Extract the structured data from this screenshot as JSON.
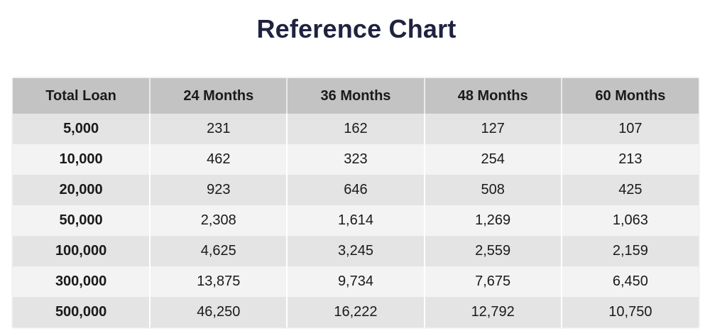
{
  "title": "Reference Chart",
  "table": {
    "headers": [
      "Total Loan",
      "24 Months",
      "36 Months",
      "48 Months",
      "60 Months"
    ],
    "rows": [
      [
        "5,000",
        "231",
        "162",
        "127",
        "107"
      ],
      [
        "10,000",
        "462",
        "323",
        "254",
        "213"
      ],
      [
        "20,000",
        "923",
        "646",
        "508",
        "425"
      ],
      [
        "50,000",
        "2,308",
        "1,614",
        "1,269",
        "1,063"
      ],
      [
        "100,000",
        "4,625",
        "3,245",
        "2,559",
        "2,159"
      ],
      [
        "300,000",
        "13,875",
        "9,734",
        "7,675",
        "6,450"
      ],
      [
        "500,000",
        "46,250",
        "16,222",
        "12,792",
        "10,750"
      ]
    ]
  },
  "colors": {
    "title": "#1f2240",
    "header_bg": "#c3c3c3",
    "row_odd_bg": "#e4e4e4",
    "row_even_bg": "#f3f3f3"
  }
}
